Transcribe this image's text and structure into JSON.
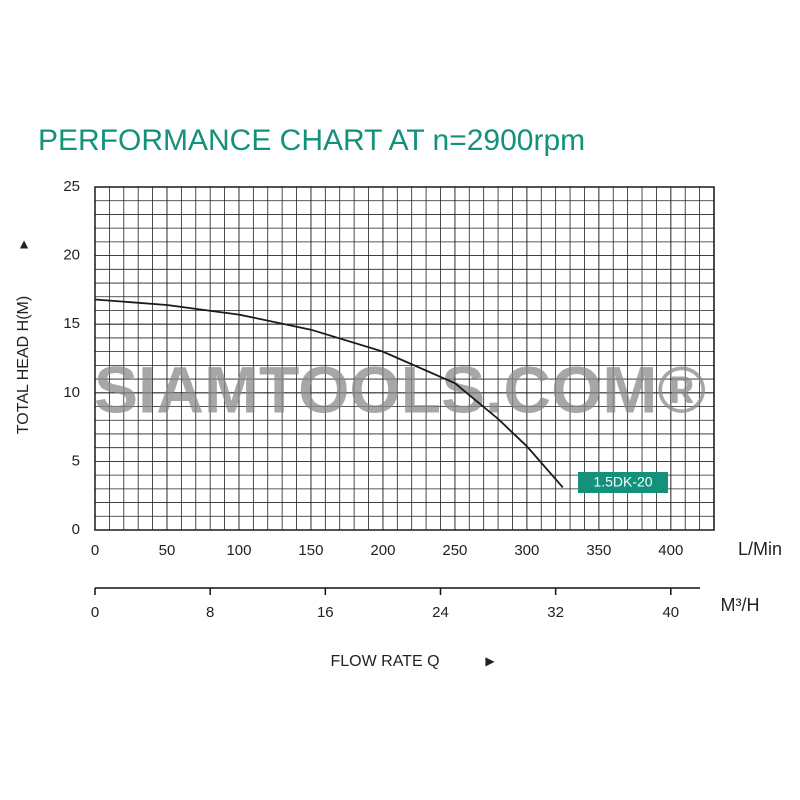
{
  "chart_data": {
    "type": "line",
    "title": "PERFORMANCE CHART AT n=2900rpm",
    "ylabel": "TOTAL HEAD H(M)",
    "ylabel_arrow": "▲",
    "xlabel": "FLOW RATE Q",
    "xlabel_arrow": "▶",
    "x_unit": "L/Min",
    "x2_unit": "M³/H",
    "watermark": "SIAMTOOLS.COM®",
    "series": [
      {
        "name": "1.5DK-20",
        "color": "#1a1a1a",
        "label_color": "#13917a",
        "x": [
          0,
          50,
          100,
          150,
          200,
          250,
          280,
          300,
          325
        ],
        "values": [
          16.8,
          16.4,
          15.7,
          14.6,
          13.0,
          10.7,
          8.1,
          6.1,
          3.1
        ]
      }
    ],
    "xlim": [
      0,
      430
    ],
    "xticks": [
      0,
      50,
      100,
      150,
      200,
      250,
      300,
      350,
      400
    ],
    "x2lim": [
      0,
      43
    ],
    "x2ticks": [
      0,
      8,
      16,
      24,
      32,
      40
    ],
    "ylim": [
      0,
      25
    ],
    "yticks": [
      0,
      5,
      10,
      15,
      20,
      25
    ],
    "grid": true,
    "x_grid_step": 10,
    "y_grid_step": 1,
    "title_color": "#13917a"
  }
}
